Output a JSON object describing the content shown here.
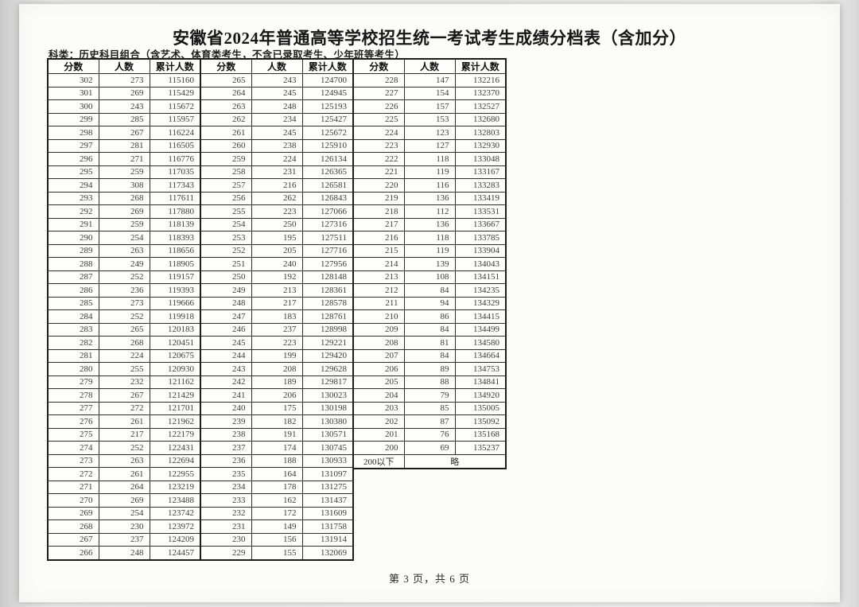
{
  "page": {
    "title": "安徽省2024年普通高等学校招生统一考试考生成绩分档表（含加分）",
    "subtitle": "科类：历史科目组合（含艺术、体育类考生，不含已录取考生、少年班等考生）",
    "footer": "第 3 页，共 6 页"
  },
  "colors": {
    "page_background": "#fcfcfb",
    "border": "#2d2d2d",
    "text": "#3b3b3b"
  },
  "table": {
    "columns": [
      "分数",
      "人数",
      "累计人数"
    ],
    "groups": [
      {
        "rows": [
          [
            302,
            273,
            115160
          ],
          [
            301,
            269,
            115429
          ],
          [
            300,
            243,
            115672
          ],
          [
            299,
            285,
            115957
          ],
          [
            298,
            267,
            116224
          ],
          [
            297,
            281,
            116505
          ],
          [
            296,
            271,
            116776
          ],
          [
            295,
            259,
            117035
          ],
          [
            294,
            308,
            117343
          ],
          [
            293,
            268,
            117611
          ],
          [
            292,
            269,
            117880
          ],
          [
            291,
            259,
            118139
          ],
          [
            290,
            254,
            118393
          ],
          [
            289,
            263,
            118656
          ],
          [
            288,
            249,
            118905
          ],
          [
            287,
            252,
            119157
          ],
          [
            286,
            236,
            119393
          ],
          [
            285,
            273,
            119666
          ],
          [
            284,
            252,
            119918
          ],
          [
            283,
            265,
            120183
          ],
          [
            282,
            268,
            120451
          ],
          [
            281,
            224,
            120675
          ],
          [
            280,
            255,
            120930
          ],
          [
            279,
            232,
            121162
          ],
          [
            278,
            267,
            121429
          ],
          [
            277,
            272,
            121701
          ],
          [
            276,
            261,
            121962
          ],
          [
            275,
            217,
            122179
          ],
          [
            274,
            252,
            122431
          ],
          [
            273,
            263,
            122694
          ],
          [
            272,
            261,
            122955
          ],
          [
            271,
            264,
            123219
          ],
          [
            270,
            269,
            123488
          ],
          [
            269,
            254,
            123742
          ],
          [
            268,
            230,
            123972
          ],
          [
            267,
            237,
            124209
          ],
          [
            266,
            248,
            124457
          ]
        ]
      },
      {
        "rows": [
          [
            265,
            243,
            124700
          ],
          [
            264,
            245,
            124945
          ],
          [
            263,
            248,
            125193
          ],
          [
            262,
            234,
            125427
          ],
          [
            261,
            245,
            125672
          ],
          [
            260,
            238,
            125910
          ],
          [
            259,
            224,
            126134
          ],
          [
            258,
            231,
            126365
          ],
          [
            257,
            216,
            126581
          ],
          [
            256,
            262,
            126843
          ],
          [
            255,
            223,
            127066
          ],
          [
            254,
            250,
            127316
          ],
          [
            253,
            195,
            127511
          ],
          [
            252,
            205,
            127716
          ],
          [
            251,
            240,
            127956
          ],
          [
            250,
            192,
            128148
          ],
          [
            249,
            213,
            128361
          ],
          [
            248,
            217,
            128578
          ],
          [
            247,
            183,
            128761
          ],
          [
            246,
            237,
            128998
          ],
          [
            245,
            223,
            129221
          ],
          [
            244,
            199,
            129420
          ],
          [
            243,
            208,
            129628
          ],
          [
            242,
            189,
            129817
          ],
          [
            241,
            206,
            130023
          ],
          [
            240,
            175,
            130198
          ],
          [
            239,
            182,
            130380
          ],
          [
            238,
            191,
            130571
          ],
          [
            237,
            174,
            130745
          ],
          [
            236,
            188,
            130933
          ],
          [
            235,
            164,
            131097
          ],
          [
            234,
            178,
            131275
          ],
          [
            233,
            162,
            131437
          ],
          [
            232,
            172,
            131609
          ],
          [
            231,
            149,
            131758
          ],
          [
            230,
            156,
            131914
          ],
          [
            229,
            155,
            132069
          ]
        ]
      },
      {
        "rows": [
          [
            228,
            147,
            132216
          ],
          [
            227,
            154,
            132370
          ],
          [
            226,
            157,
            132527
          ],
          [
            225,
            153,
            132680
          ],
          [
            224,
            123,
            132803
          ],
          [
            223,
            127,
            132930
          ],
          [
            222,
            118,
            133048
          ],
          [
            221,
            119,
            133167
          ],
          [
            220,
            116,
            133283
          ],
          [
            219,
            136,
            133419
          ],
          [
            218,
            112,
            133531
          ],
          [
            217,
            136,
            133667
          ],
          [
            216,
            118,
            133785
          ],
          [
            215,
            119,
            133904
          ],
          [
            214,
            139,
            134043
          ],
          [
            213,
            108,
            134151
          ],
          [
            212,
            84,
            134235
          ],
          [
            211,
            94,
            134329
          ],
          [
            210,
            86,
            134415
          ],
          [
            209,
            84,
            134499
          ],
          [
            208,
            81,
            134580
          ],
          [
            207,
            84,
            134664
          ],
          [
            206,
            89,
            134753
          ],
          [
            205,
            88,
            134841
          ],
          [
            204,
            79,
            134920
          ],
          [
            203,
            85,
            135005
          ],
          [
            202,
            87,
            135092
          ],
          [
            201,
            76,
            135168
          ],
          [
            200,
            69,
            135237
          ]
        ],
        "special_row": {
          "label": "200以下",
          "value": "略"
        }
      }
    ]
  }
}
